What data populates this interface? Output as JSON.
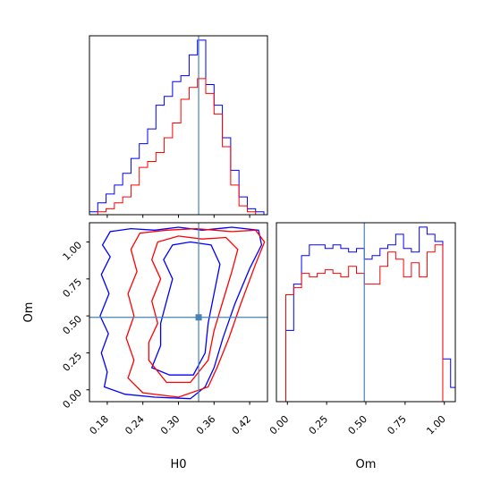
{
  "chart_data": {
    "type": "corner",
    "parameters": [
      "H0",
      "Om"
    ],
    "truth": {
      "H0": 0.334,
      "Om": 0.49
    },
    "truth_color": "#4682b4",
    "series_colors": {
      "blue": "#0000ff",
      "red": "#ff0000"
    },
    "panels": {
      "h0_hist": {
        "type": "histogram",
        "xlim": [
          0.15,
          0.45
        ],
        "bin_edges": [
          0.15,
          0.164,
          0.178,
          0.192,
          0.206,
          0.22,
          0.234,
          0.248,
          0.262,
          0.276,
          0.29,
          0.304,
          0.318,
          0.332,
          0.346,
          0.36,
          0.374,
          0.388,
          0.402,
          0.416,
          0.43,
          0.444
        ],
        "series": [
          {
            "color": "blue",
            "counts": [
              1,
              4,
              7,
              10,
              14,
              19,
              24,
              29,
              37,
              40,
              45,
              47,
              54,
              59,
              44,
              37,
              26,
              15,
              6,
              2,
              1
            ]
          },
          {
            "color": "red",
            "counts": [
              0,
              1,
              2,
              4,
              6,
              10,
              16,
              18,
              21,
              26,
              31,
              39,
              43,
              46,
              41,
              34,
              23,
              10,
              3,
              1,
              0
            ]
          }
        ]
      },
      "om_hist": {
        "type": "histogram",
        "xlim": [
          -0.07,
          1.07
        ],
        "xticks": [
          "0.00",
          "0.25",
          "0.50",
          "0.75",
          "1.00"
        ],
        "xlabel": "Om",
        "bin_edges": [
          -0.07,
          -0.01,
          0.04,
          0.09,
          0.14,
          0.19,
          0.24,
          0.29,
          0.34,
          0.39,
          0.44,
          0.49,
          0.54,
          0.59,
          0.64,
          0.69,
          0.74,
          0.79,
          0.84,
          0.89,
          0.94,
          0.99,
          1.04,
          1.07
        ],
        "series": [
          {
            "color": "blue",
            "counts": [
              0,
              20,
              33,
              41,
              44,
              44,
              43,
              44,
              43,
              42,
              43,
              40,
              41,
              43,
              44,
              47,
              43,
              42,
              49,
              47,
              45,
              12,
              4
            ]
          },
          {
            "color": "red",
            "counts": [
              0,
              30,
              32,
              36,
              35,
              36,
              37,
              36,
              35,
              38,
              36,
              33,
              33,
              38,
              42,
              40,
              35,
              39,
              35,
              42,
              44,
              0,
              0
            ]
          }
        ]
      },
      "joint": {
        "type": "contour",
        "xlim": [
          0.15,
          0.45
        ],
        "ylim": [
          -0.08,
          1.13
        ],
        "xticks": [
          "0.18",
          "0.24",
          "0.30",
          "0.36",
          "0.42"
        ],
        "yticks": [
          "0.00",
          "0.25",
          "0.50",
          "0.75",
          "1.00"
        ],
        "xlabel": "H0",
        "ylabel": "Om",
        "contours": [
          {
            "color": "blue",
            "points": [
              [
                0.175,
                0.02
              ],
              [
                0.21,
                -0.03
              ],
              [
                0.26,
                -0.05
              ],
              [
                0.32,
                -0.06
              ],
              [
                0.345,
                0.02
              ],
              [
                0.36,
                0.15
              ],
              [
                0.375,
                0.35
              ],
              [
                0.395,
                0.58
              ],
              [
                0.42,
                0.82
              ],
              [
                0.44,
                0.98
              ],
              [
                0.435,
                1.08
              ],
              [
                0.39,
                1.1
              ],
              [
                0.34,
                1.08
              ],
              [
                0.3,
                1.1
              ],
              [
                0.26,
                1.08
              ],
              [
                0.22,
                1.09
              ],
              [
                0.185,
                1.07
              ],
              [
                0.172,
                0.98
              ],
              [
                0.185,
                0.9
              ],
              [
                0.17,
                0.78
              ],
              [
                0.183,
                0.65
              ],
              [
                0.168,
                0.5
              ],
              [
                0.182,
                0.38
              ],
              [
                0.17,
                0.25
              ],
              [
                0.18,
                0.12
              ],
              [
                0.175,
                0.02
              ]
            ]
          },
          {
            "color": "blue",
            "points": [
              [
                0.255,
                0.15
              ],
              [
                0.285,
                0.1
              ],
              [
                0.325,
                0.1
              ],
              [
                0.345,
                0.25
              ],
              [
                0.35,
                0.45
              ],
              [
                0.36,
                0.65
              ],
              [
                0.37,
                0.85
              ],
              [
                0.355,
                0.98
              ],
              [
                0.32,
                1.0
              ],
              [
                0.29,
                0.98
              ],
              [
                0.275,
                0.88
              ],
              [
                0.29,
                0.75
              ],
              [
                0.28,
                0.6
              ],
              [
                0.27,
                0.45
              ],
              [
                0.27,
                0.3
              ],
              [
                0.255,
                0.15
              ]
            ]
          },
          {
            "color": "red",
            "points": [
              [
                0.215,
                0.08
              ],
              [
                0.24,
                -0.02
              ],
              [
                0.3,
                -0.05
              ],
              [
                0.35,
                0.02
              ],
              [
                0.365,
                0.15
              ],
              [
                0.385,
                0.35
              ],
              [
                0.405,
                0.58
              ],
              [
                0.43,
                0.85
              ],
              [
                0.445,
                1.0
              ],
              [
                0.43,
                1.08
              ],
              [
                0.39,
                1.07
              ],
              [
                0.33,
                1.09
              ],
              [
                0.28,
                1.08
              ],
              [
                0.235,
                1.06
              ],
              [
                0.22,
                0.95
              ],
              [
                0.23,
                0.8
              ],
              [
                0.215,
                0.65
              ],
              [
                0.225,
                0.5
              ],
              [
                0.212,
                0.35
              ],
              [
                0.225,
                0.2
              ],
              [
                0.215,
                0.08
              ]
            ]
          },
          {
            "color": "red",
            "points": [
              [
                0.25,
                0.2
              ],
              [
                0.28,
                0.05
              ],
              [
                0.32,
                0.05
              ],
              [
                0.35,
                0.2
              ],
              [
                0.36,
                0.4
              ],
              [
                0.375,
                0.6
              ],
              [
                0.39,
                0.8
              ],
              [
                0.4,
                0.95
              ],
              [
                0.38,
                1.03
              ],
              [
                0.34,
                1.02
              ],
              [
                0.3,
                1.04
              ],
              [
                0.265,
                1.0
              ],
              [
                0.255,
                0.88
              ],
              [
                0.27,
                0.75
              ],
              [
                0.255,
                0.6
              ],
              [
                0.265,
                0.45
              ],
              [
                0.25,
                0.32
              ],
              [
                0.25,
                0.2
              ]
            ]
          }
        ]
      }
    }
  }
}
